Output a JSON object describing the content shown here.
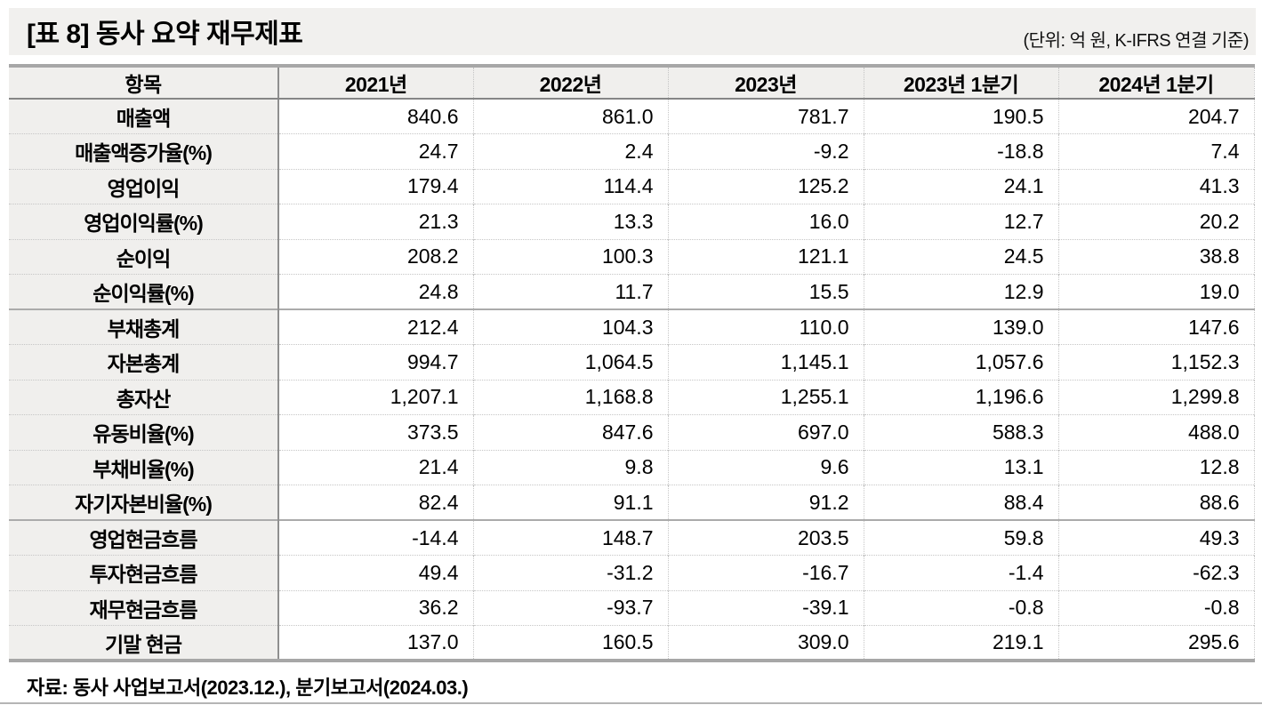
{
  "title": "[표 8] 동사 요약 재무제표",
  "unit_note": "(단위: 억 원, K-IFRS 연결 기준)",
  "table": {
    "columns": [
      "항목",
      "2021년",
      "2022년",
      "2023년",
      "2023년 1분기",
      "2024년 1분기"
    ],
    "rows": [
      {
        "label": "매출액",
        "values": [
          "840.6",
          "861.0",
          "781.7",
          "190.5",
          "204.7"
        ],
        "group_start": false
      },
      {
        "label": "매출액증가율(%)",
        "values": [
          "24.7",
          "2.4",
          "-9.2",
          "-18.8",
          "7.4"
        ],
        "group_start": false
      },
      {
        "label": "영업이익",
        "values": [
          "179.4",
          "114.4",
          "125.2",
          "24.1",
          "41.3"
        ],
        "group_start": false
      },
      {
        "label": "영업이익률(%)",
        "values": [
          "21.3",
          "13.3",
          "16.0",
          "12.7",
          "20.2"
        ],
        "group_start": false
      },
      {
        "label": "순이익",
        "values": [
          "208.2",
          "100.3",
          "121.1",
          "24.5",
          "38.8"
        ],
        "group_start": false
      },
      {
        "label": "순이익률(%)",
        "values": [
          "24.8",
          "11.7",
          "15.5",
          "12.9",
          "19.0"
        ],
        "group_start": false
      },
      {
        "label": "부채총계",
        "values": [
          "212.4",
          "104.3",
          "110.0",
          "139.0",
          "147.6"
        ],
        "group_start": true
      },
      {
        "label": "자본총계",
        "values": [
          "994.7",
          "1,064.5",
          "1,145.1",
          "1,057.6",
          "1,152.3"
        ],
        "group_start": false
      },
      {
        "label": "총자산",
        "values": [
          "1,207.1",
          "1,168.8",
          "1,255.1",
          "1,196.6",
          "1,299.8"
        ],
        "group_start": false
      },
      {
        "label": "유동비율(%)",
        "values": [
          "373.5",
          "847.6",
          "697.0",
          "588.3",
          "488.0"
        ],
        "group_start": false
      },
      {
        "label": "부채비율(%)",
        "values": [
          "21.4",
          "9.8",
          "9.6",
          "13.1",
          "12.8"
        ],
        "group_start": false
      },
      {
        "label": "자기자본비율(%)",
        "values": [
          "82.4",
          "91.1",
          "91.2",
          "88.4",
          "88.6"
        ],
        "group_start": false
      },
      {
        "label": "영업현금흐름",
        "values": [
          "-14.4",
          "148.7",
          "203.5",
          "59.8",
          "49.3"
        ],
        "group_start": true
      },
      {
        "label": "투자현금흐름",
        "values": [
          "49.4",
          "-31.2",
          "-16.7",
          "-1.4",
          "-62.3"
        ],
        "group_start": false
      },
      {
        "label": "재무현금흐름",
        "values": [
          "36.2",
          "-93.7",
          "-39.1",
          "-0.8",
          "-0.8"
        ],
        "group_start": false
      },
      {
        "label": "기말 현금",
        "values": [
          "137.0",
          "160.5",
          "309.0",
          "219.1",
          "295.6"
        ],
        "group_start": false
      }
    ]
  },
  "source": "자료: 동사 사업보고서(2023.12.), 분기보고서(2024.03.)",
  "colors": {
    "title_band_bg": "#f1f0ee",
    "header_bg": "#f0efed",
    "thick_border": "#a7a7a7",
    "group_separator": "#ababab",
    "dotted_line": "#c6c6c6",
    "text": "#000000"
  }
}
